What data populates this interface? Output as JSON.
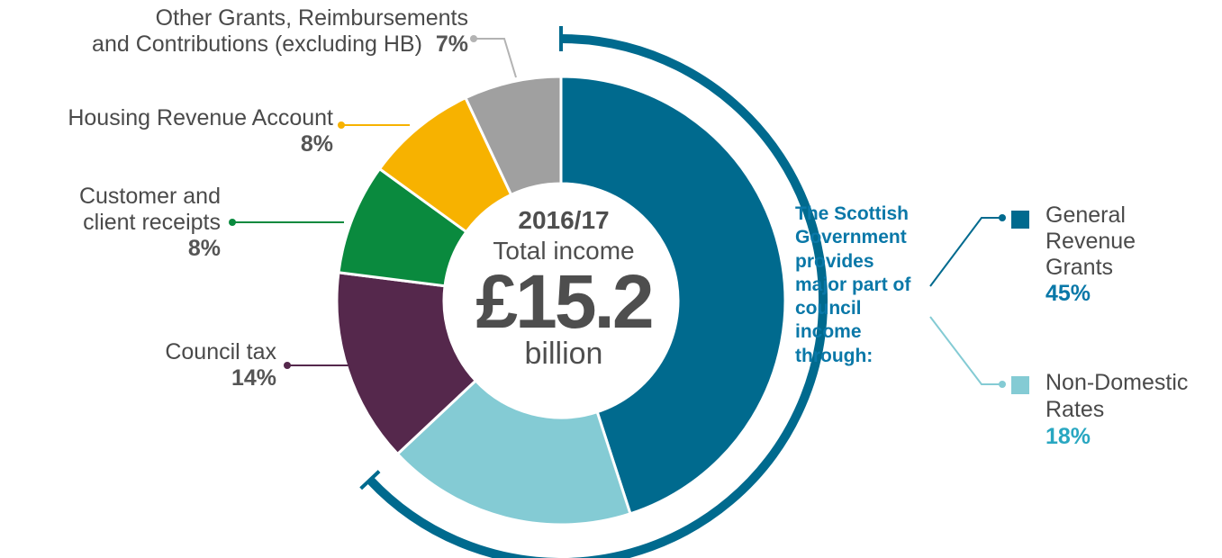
{
  "chart_data": {
    "type": "pie",
    "variant": "donut",
    "center": {
      "year": "2016/17",
      "caption": "Total income",
      "amount": "£15.2",
      "unit": "billion"
    },
    "slices": [
      {
        "label": "General Revenue Grants",
        "value": 45,
        "value_label": "45%",
        "color": "#006a8e"
      },
      {
        "label": "Non-Domestic Rates",
        "value": 18,
        "value_label": "18%",
        "color": "#84cbd4"
      },
      {
        "label": "Council tax",
        "value": 14,
        "value_label": "14%",
        "color": "#55284c"
      },
      {
        "label": "Customer and client receipts",
        "value": 8,
        "value_label": "8%",
        "color": "#0a8a3e"
      },
      {
        "label": "Housing Revenue Account",
        "value": 8,
        "value_label": "8%",
        "color": "#f7b200"
      },
      {
        "label": "Other Grants, Reimbursements and Contributions (excluding HB)",
        "value": 7,
        "value_label": "7%",
        "color": "#a0a0a0"
      }
    ],
    "annotation": "The Scottish Government provides major part of council income through:",
    "annotation_color": "#0a78a8",
    "grouped_slices": [
      "General Revenue Grants",
      "Non-Domestic Rates"
    ]
  },
  "labels": {
    "other_line1": "Other Grants, Reimbursements",
    "other_line2": "and Contributions (excluding HB)",
    "housing_line1": "Housing Revenue Account",
    "customer_line1": "Customer and",
    "customer_line2": "client receipts",
    "council_line1": "Council tax",
    "grg_line1": "General",
    "grg_line2": "Revenue",
    "grg_line3": "Grants",
    "ndr_line1": "Non-Domestic",
    "ndr_line2": "Rates"
  }
}
